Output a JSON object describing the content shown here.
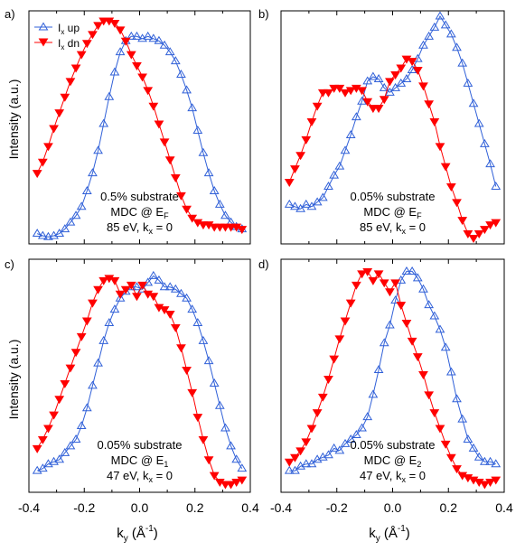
{
  "figure": {
    "ylabel": "Intensity (a.u.)",
    "xlabel_main": "k",
    "xlabel_sub": "y",
    "xlabel_paren_open": " (Å",
    "xlabel_sup": "-1",
    "xlabel_paren_close": ")",
    "legend": {
      "up": {
        "main": "I",
        "sub": "x",
        "rest": " up"
      },
      "dn": {
        "main": "I",
        "sub": "x",
        "rest": " dn"
      }
    },
    "colors": {
      "up": "#3060d8",
      "dn": "#ff0000"
    }
  },
  "chart_data": [
    {
      "id": "a",
      "type": "line",
      "panel_label": "a)",
      "xlim": [
        -0.4,
        0.4
      ],
      "ylim": [
        0,
        1
      ],
      "xticks": [
        -0.4,
        -0.2,
        0.0,
        0.2,
        0.4
      ],
      "xtick_labels": [
        "-0.4",
        "-0.2",
        "0.0",
        "0.2",
        "0.4"
      ],
      "annotation": [
        {
          "text": "0.5% substrate"
        },
        {
          "text": "MDC @ E",
          "sub": "F"
        },
        {
          "text": "85 eV,  k",
          "sub": "x",
          "suffix": " = 0"
        }
      ],
      "series": [
        {
          "name": "Ix up",
          "key": "up",
          "marker": "triangle-up-open",
          "x": [
            -0.37,
            -0.35,
            -0.33,
            -0.31,
            -0.29,
            -0.27,
            -0.25,
            -0.23,
            -0.21,
            -0.19,
            -0.17,
            -0.15,
            -0.13,
            -0.11,
            -0.09,
            -0.07,
            -0.05,
            -0.03,
            -0.01,
            0.01,
            0.03,
            0.05,
            0.07,
            0.09,
            0.11,
            0.13,
            0.15,
            0.17,
            0.19,
            0.21,
            0.23,
            0.25,
            0.27,
            0.29,
            0.31,
            0.33,
            0.35,
            0.37
          ],
          "y": [
            0.03,
            0.02,
            0.015,
            0.02,
            0.03,
            0.05,
            0.08,
            0.11,
            0.15,
            0.22,
            0.3,
            0.4,
            0.52,
            0.64,
            0.75,
            0.84,
            0.89,
            0.91,
            0.91,
            0.9,
            0.91,
            0.9,
            0.89,
            0.87,
            0.84,
            0.8,
            0.74,
            0.67,
            0.59,
            0.49,
            0.39,
            0.3,
            0.22,
            0.16,
            0.11,
            0.08,
            0.06,
            0.05
          ]
        },
        {
          "name": "Ix dn",
          "key": "dn",
          "marker": "triangle-down-filled",
          "x": [
            -0.37,
            -0.35,
            -0.33,
            -0.31,
            -0.29,
            -0.27,
            -0.25,
            -0.23,
            -0.21,
            -0.19,
            -0.17,
            -0.15,
            -0.13,
            -0.11,
            -0.09,
            -0.07,
            -0.05,
            -0.03,
            -0.01,
            0.01,
            0.03,
            0.05,
            0.07,
            0.09,
            0.11,
            0.13,
            0.15,
            0.17,
            0.19,
            0.21,
            0.23,
            0.25,
            0.27,
            0.29,
            0.31,
            0.33,
            0.35,
            0.37
          ],
          "y": [
            0.3,
            0.35,
            0.42,
            0.5,
            0.57,
            0.64,
            0.71,
            0.77,
            0.83,
            0.88,
            0.92,
            0.96,
            0.98,
            0.98,
            0.97,
            0.94,
            0.89,
            0.83,
            0.78,
            0.73,
            0.67,
            0.6,
            0.52,
            0.44,
            0.36,
            0.28,
            0.2,
            0.14,
            0.1,
            0.08,
            0.07,
            0.07,
            0.06,
            0.06,
            0.06,
            0.06,
            0.06,
            0.05
          ]
        }
      ]
    },
    {
      "id": "b",
      "type": "line",
      "panel_label": "b)",
      "xlim": [
        -0.4,
        0.4
      ],
      "ylim": [
        0,
        1
      ],
      "xticks": [
        -0.4,
        -0.2,
        0.0,
        0.2,
        0.4
      ],
      "xtick_labels": [
        "-0.4",
        "-0.2",
        "0.0",
        "0.2",
        "0.4"
      ],
      "annotation": [
        {
          "text": "0.05% substrate"
        },
        {
          "text": "MDC @ E",
          "sub": "F"
        },
        {
          "text": "85 eV,  k",
          "sub": "x",
          "suffix": " = 0"
        }
      ],
      "series": [
        {
          "name": "Ix up",
          "key": "up",
          "marker": "triangle-up-open",
          "x": [
            -0.37,
            -0.35,
            -0.33,
            -0.31,
            -0.29,
            -0.27,
            -0.25,
            -0.23,
            -0.21,
            -0.19,
            -0.17,
            -0.15,
            -0.13,
            -0.11,
            -0.09,
            -0.07,
            -0.05,
            -0.03,
            -0.01,
            0.01,
            0.03,
            0.05,
            0.07,
            0.09,
            0.11,
            0.13,
            0.15,
            0.17,
            0.19,
            0.21,
            0.23,
            0.25,
            0.27,
            0.29,
            0.31,
            0.33,
            0.35,
            0.37
          ],
          "y": [
            0.16,
            0.15,
            0.14,
            0.16,
            0.15,
            0.17,
            0.19,
            0.24,
            0.29,
            0.33,
            0.4,
            0.47,
            0.55,
            0.62,
            0.71,
            0.73,
            0.72,
            0.68,
            0.66,
            0.68,
            0.7,
            0.72,
            0.76,
            0.81,
            0.87,
            0.91,
            0.95,
            1.0,
            0.96,
            0.92,
            0.86,
            0.79,
            0.7,
            0.61,
            0.52,
            0.43,
            0.34,
            0.24
          ]
        },
        {
          "name": "Ix dn",
          "key": "dn",
          "marker": "triangle-down-filled",
          "x": [
            -0.37,
            -0.35,
            -0.33,
            -0.31,
            -0.29,
            -0.27,
            -0.25,
            -0.23,
            -0.21,
            -0.19,
            -0.17,
            -0.15,
            -0.13,
            -0.11,
            -0.09,
            -0.07,
            -0.05,
            -0.03,
            -0.01,
            0.01,
            0.03,
            0.05,
            0.07,
            0.09,
            0.11,
            0.13,
            0.15,
            0.17,
            0.19,
            0.21,
            0.23,
            0.25,
            0.27,
            0.29,
            0.31,
            0.33,
            0.35,
            0.37
          ],
          "y": [
            0.26,
            0.32,
            0.38,
            0.45,
            0.53,
            0.6,
            0.66,
            0.66,
            0.68,
            0.68,
            0.66,
            0.67,
            0.68,
            0.67,
            0.62,
            0.59,
            0.59,
            0.63,
            0.71,
            0.74,
            0.77,
            0.81,
            0.8,
            0.76,
            0.69,
            0.61,
            0.53,
            0.42,
            0.33,
            0.24,
            0.17,
            0.09,
            0.03,
            0.01,
            0.03,
            0.05,
            0.07,
            0.08
          ]
        }
      ]
    },
    {
      "id": "c",
      "type": "line",
      "panel_label": "c)",
      "xlim": [
        -0.4,
        0.4
      ],
      "ylim": [
        0,
        1
      ],
      "xticks": [
        -0.4,
        -0.2,
        0.0,
        0.2,
        0.4
      ],
      "xtick_labels": [
        "-0.4",
        "-0.2",
        "0.0",
        "0.2",
        "0.4"
      ],
      "annotation": [
        {
          "text": "0.05% substrate"
        },
        {
          "text": "MDC @ E",
          "sub": "1"
        },
        {
          "text": "47 eV,  k",
          "sub": "x",
          "suffix": " = 0"
        }
      ],
      "series": [
        {
          "name": "Ix up",
          "key": "up",
          "marker": "triangle-up-open",
          "x": [
            -0.37,
            -0.35,
            -0.33,
            -0.31,
            -0.29,
            -0.27,
            -0.25,
            -0.23,
            -0.21,
            -0.19,
            -0.17,
            -0.15,
            -0.13,
            -0.11,
            -0.09,
            -0.07,
            -0.05,
            -0.03,
            -0.01,
            0.01,
            0.03,
            0.05,
            0.07,
            0.09,
            0.11,
            0.13,
            0.15,
            0.17,
            0.19,
            0.21,
            0.23,
            0.25,
            0.27,
            0.29,
            0.31,
            0.33,
            0.35,
            0.37
          ],
          "y": [
            0.08,
            0.09,
            0.11,
            0.12,
            0.13,
            0.16,
            0.19,
            0.22,
            0.28,
            0.36,
            0.46,
            0.56,
            0.66,
            0.74,
            0.8,
            0.85,
            0.88,
            0.9,
            0.9,
            0.89,
            0.92,
            0.95,
            0.93,
            0.9,
            0.9,
            0.89,
            0.87,
            0.85,
            0.8,
            0.74,
            0.66,
            0.57,
            0.47,
            0.37,
            0.27,
            0.19,
            0.13,
            0.09
          ]
        },
        {
          "name": "Ix dn",
          "key": "dn",
          "marker": "triangle-down-filled",
          "x": [
            -0.37,
            -0.35,
            -0.33,
            -0.31,
            -0.29,
            -0.27,
            -0.25,
            -0.23,
            -0.21,
            -0.19,
            -0.17,
            -0.15,
            -0.13,
            -0.11,
            -0.09,
            -0.07,
            -0.05,
            -0.03,
            -0.01,
            0.01,
            0.03,
            0.05,
            0.07,
            0.09,
            0.11,
            0.13,
            0.15,
            0.17,
            0.19,
            0.21,
            0.23,
            0.25,
            0.27,
            0.29,
            0.31,
            0.33,
            0.35,
            0.37
          ],
          "y": [
            0.18,
            0.22,
            0.27,
            0.33,
            0.4,
            0.47,
            0.54,
            0.61,
            0.68,
            0.75,
            0.83,
            0.89,
            0.93,
            0.94,
            0.93,
            0.87,
            0.89,
            0.91,
            0.86,
            0.91,
            0.87,
            0.86,
            0.81,
            0.8,
            0.78,
            0.72,
            0.63,
            0.53,
            0.43,
            0.32,
            0.22,
            0.13,
            0.06,
            0.03,
            0.02,
            0.02,
            0.03,
            0.04
          ]
        }
      ]
    },
    {
      "id": "d",
      "type": "line",
      "panel_label": "d)",
      "xlim": [
        -0.4,
        0.4
      ],
      "ylim": [
        0,
        1
      ],
      "xticks": [
        -0.4,
        -0.2,
        0.0,
        0.2,
        0.4
      ],
      "xtick_labels": [
        "-0.4",
        "-0.2",
        "0.0",
        "0.2",
        "0.4"
      ],
      "annotation": [
        {
          "text": "0.05% substrate"
        },
        {
          "text": "MDC @ E",
          "sub": "2"
        },
        {
          "text": "47 eV,  k",
          "sub": "x",
          "suffix": " = 0"
        }
      ],
      "series": [
        {
          "name": "Ix up",
          "key": "up",
          "marker": "triangle-up-open",
          "x": [
            -0.37,
            -0.35,
            -0.33,
            -0.31,
            -0.29,
            -0.27,
            -0.25,
            -0.23,
            -0.21,
            -0.19,
            -0.17,
            -0.15,
            -0.13,
            -0.11,
            -0.09,
            -0.07,
            -0.05,
            -0.03,
            -0.01,
            0.01,
            0.03,
            0.05,
            0.07,
            0.09,
            0.11,
            0.13,
            0.15,
            0.17,
            0.19,
            0.21,
            0.23,
            0.25,
            0.27,
            0.29,
            0.31,
            0.33,
            0.35,
            0.37
          ],
          "y": [
            0.08,
            0.08,
            0.1,
            0.11,
            0.11,
            0.13,
            0.14,
            0.15,
            0.18,
            0.17,
            0.2,
            0.22,
            0.24,
            0.27,
            0.32,
            0.42,
            0.53,
            0.65,
            0.73,
            0.84,
            0.93,
            0.97,
            0.97,
            0.94,
            0.89,
            0.82,
            0.77,
            0.71,
            0.63,
            0.52,
            0.4,
            0.31,
            0.22,
            0.18,
            0.14,
            0.12,
            0.12,
            0.11
          ]
        },
        {
          "name": "Ix dn",
          "key": "dn",
          "marker": "triangle-down-filled",
          "x": [
            -0.37,
            -0.35,
            -0.33,
            -0.31,
            -0.29,
            -0.27,
            -0.25,
            -0.23,
            -0.21,
            -0.19,
            -0.17,
            -0.15,
            -0.13,
            -0.11,
            -0.09,
            -0.07,
            -0.05,
            -0.03,
            -0.01,
            0.01,
            0.03,
            0.05,
            0.07,
            0.09,
            0.11,
            0.13,
            0.15,
            0.17,
            0.19,
            0.21,
            0.23,
            0.25,
            0.27,
            0.29,
            0.31,
            0.33,
            0.35,
            0.37
          ],
          "y": [
            0.12,
            0.14,
            0.17,
            0.21,
            0.27,
            0.34,
            0.41,
            0.49,
            0.58,
            0.67,
            0.75,
            0.83,
            0.91,
            0.96,
            0.97,
            0.93,
            0.96,
            0.92,
            0.88,
            0.92,
            0.82,
            0.74,
            0.66,
            0.59,
            0.51,
            0.42,
            0.34,
            0.27,
            0.2,
            0.14,
            0.09,
            0.06,
            0.05,
            0.04,
            0.03,
            0.02,
            0.03,
            0.04
          ]
        }
      ]
    }
  ]
}
